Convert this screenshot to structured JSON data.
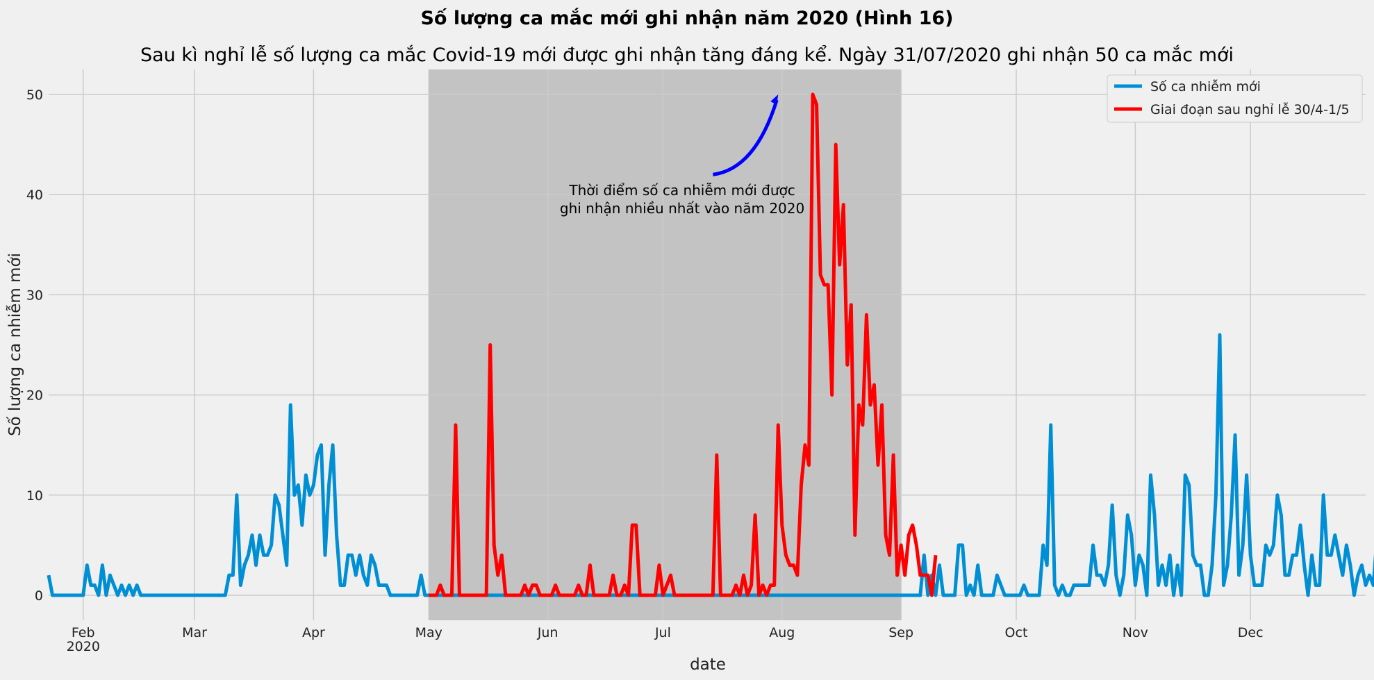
{
  "chart_data": {
    "type": "line",
    "title": "Số lượng ca mắc mới ghi nhận năm 2020 (Hình 16)",
    "subtitle": "Sau kì nghỉ lễ số lượng ca mắc Covid-19 mới được ghi nhận tăng đáng kể. Ngày 31/07/2020 ghi nhận 50 ca mắc mới",
    "xlabel": "date",
    "ylabel": "Số lượng ca nhiễm mới",
    "x_range": [
      "2020-01-23",
      "2020-12-31"
    ],
    "ylim": [
      -2.5,
      52.5
    ],
    "y_ticks": [
      0,
      10,
      20,
      30,
      40,
      50
    ],
    "x_ticks": [
      {
        "date": "2020-02-01",
        "label": "Feb",
        "sublabel": "2020"
      },
      {
        "date": "2020-03-01",
        "label": "Mar",
        "sublabel": ""
      },
      {
        "date": "2020-04-01",
        "label": "Apr",
        "sublabel": ""
      },
      {
        "date": "2020-05-01",
        "label": "May",
        "sublabel": ""
      },
      {
        "date": "2020-06-01",
        "label": "Jun",
        "sublabel": ""
      },
      {
        "date": "2020-07-01",
        "label": "Jul",
        "sublabel": ""
      },
      {
        "date": "2020-08-01",
        "label": "Aug",
        "sublabel": ""
      },
      {
        "date": "2020-09-01",
        "label": "Sep",
        "sublabel": ""
      },
      {
        "date": "2020-10-01",
        "label": "Oct",
        "sublabel": ""
      },
      {
        "date": "2020-11-01",
        "label": "Nov",
        "sublabel": ""
      },
      {
        "date": "2020-12-01",
        "label": "Dec",
        "sublabel": ""
      }
    ],
    "grid": true,
    "legend_position": "top-right",
    "shaded_span": {
      "start": "2020-05-01",
      "end": "2020-09-01",
      "color": "#c0c0c0"
    },
    "annotation": {
      "text_lines": [
        "Thời điểm số ca nhiễm mới được",
        "ghi nhận nhiều nhất vào năm 2020"
      ],
      "text_anchor_date": "2020-07-06",
      "text_anchor_y": 40,
      "arrow_from": {
        "date": "2020-07-14",
        "y": 42
      },
      "arrow_to": {
        "date": "2020-07-31",
        "y": 50
      },
      "color": "#0000ff"
    },
    "series": [
      {
        "name": "Số ca nhiễm mới",
        "color": "#008fd5",
        "start_date": "2020-01-23",
        "values": [
          2,
          0,
          0,
          0,
          0,
          0,
          0,
          0,
          0,
          0,
          3,
          1,
          1,
          0,
          3,
          0,
          2,
          1,
          0,
          1,
          0,
          1,
          0,
          1,
          0,
          0,
          0,
          0,
          0,
          0,
          0,
          0,
          0,
          0,
          0,
          0,
          0,
          0,
          0,
          0,
          0,
          0,
          0,
          0,
          0,
          0,
          0,
          2,
          2,
          10,
          1,
          3,
          4,
          6,
          3,
          6,
          4,
          4,
          5,
          10,
          9,
          6,
          3,
          19,
          10,
          11,
          7,
          12,
          10,
          11,
          14,
          15,
          4,
          11,
          15,
          6,
          1,
          1,
          4,
          4,
          2,
          4,
          2,
          1,
          4,
          3,
          1,
          1,
          1,
          0,
          0,
          0,
          0,
          0,
          0,
          0,
          0,
          2,
          0,
          0,
          0,
          0,
          0,
          0,
          0,
          0,
          0,
          0,
          0,
          0,
          0,
          0,
          0,
          0,
          0,
          0,
          0,
          0,
          0,
          0,
          0,
          0,
          0,
          0,
          0,
          0,
          0,
          0,
          0,
          0,
          0,
          0,
          0,
          0,
          0,
          0,
          0,
          0,
          0,
          0,
          0,
          0,
          0,
          0,
          0,
          0,
          0,
          0,
          0,
          0,
          0,
          0,
          0,
          0,
          0,
          0,
          0,
          0,
          0,
          0,
          0,
          0,
          0,
          0,
          0,
          0,
          0,
          0,
          0,
          0,
          0,
          0,
          0,
          0,
          0,
          0,
          0,
          0,
          0,
          0,
          0,
          0,
          0,
          0,
          0,
          0,
          0,
          0,
          0,
          0,
          0,
          0,
          0,
          0,
          0,
          0,
          0,
          0,
          0,
          0,
          0,
          0,
          0,
          0,
          0,
          0,
          0,
          0,
          0,
          0,
          0,
          0,
          0,
          0,
          0,
          0,
          0,
          0,
          0,
          0,
          0,
          0,
          0,
          0,
          0,
          0,
          0,
          0,
          4,
          0,
          2,
          0,
          3,
          0,
          0,
          0,
          0,
          5,
          5,
          0,
          1,
          0,
          3,
          0,
          0,
          0,
          0,
          2,
          1,
          0,
          0,
          0,
          0,
          0,
          1,
          0,
          0,
          0,
          0,
          5,
          3,
          17,
          1,
          0,
          1,
          0,
          0,
          1,
          1,
          1,
          1,
          1,
          5,
          2,
          2,
          1,
          3,
          9,
          2,
          0,
          2,
          8,
          6,
          1,
          4,
          3,
          0,
          12,
          8,
          1,
          3,
          1,
          4,
          0,
          3,
          0,
          12,
          11,
          4,
          3,
          3,
          0,
          0,
          3,
          10,
          26,
          1,
          3,
          8,
          16,
          2,
          5,
          12,
          4,
          1,
          1,
          1,
          5,
          4,
          5,
          10,
          8,
          2,
          2,
          4,
          4,
          7,
          3,
          0,
          4,
          1,
          1,
          10,
          4,
          4,
          6,
          4,
          2,
          5,
          3,
          0,
          2,
          3,
          1,
          2,
          1,
          6,
          1,
          12,
          6,
          1,
          1,
          10,
          3,
          2
        ]
      },
      {
        "name": "Giai đoạn sau nghỉ lễ 30/4-1/5",
        "color": "#ff0000",
        "start_date": "2020-05-01",
        "values": [
          0,
          0,
          0,
          1,
          0,
          0,
          0,
          17,
          0,
          0,
          0,
          0,
          0,
          0,
          0,
          0,
          25,
          5,
          2,
          4,
          0,
          0,
          0,
          0,
          0,
          1,
          0,
          1,
          1,
          0,
          0,
          0,
          0,
          1,
          0,
          0,
          0,
          0,
          0,
          1,
          0,
          0,
          3,
          0,
          0,
          0,
          0,
          0,
          2,
          0,
          0,
          1,
          0,
          7,
          7,
          0,
          0,
          0,
          0,
          0,
          3,
          0,
          1,
          2,
          0,
          0,
          0,
          0,
          0,
          0,
          0,
          0,
          0,
          0,
          0,
          14,
          0,
          0,
          0,
          0,
          1,
          0,
          2,
          0,
          1,
          8,
          0,
          1,
          0,
          1,
          1,
          17,
          7,
          4,
          3,
          3,
          2,
          11,
          15,
          13,
          50,
          49,
          32,
          31,
          31,
          20,
          45,
          33,
          39,
          23,
          29,
          6,
          19,
          17,
          28,
          19,
          21,
          13,
          19,
          6,
          4,
          14,
          2,
          5,
          2,
          6,
          7,
          5,
          2,
          2,
          2,
          0,
          4
        ]
      }
    ]
  }
}
